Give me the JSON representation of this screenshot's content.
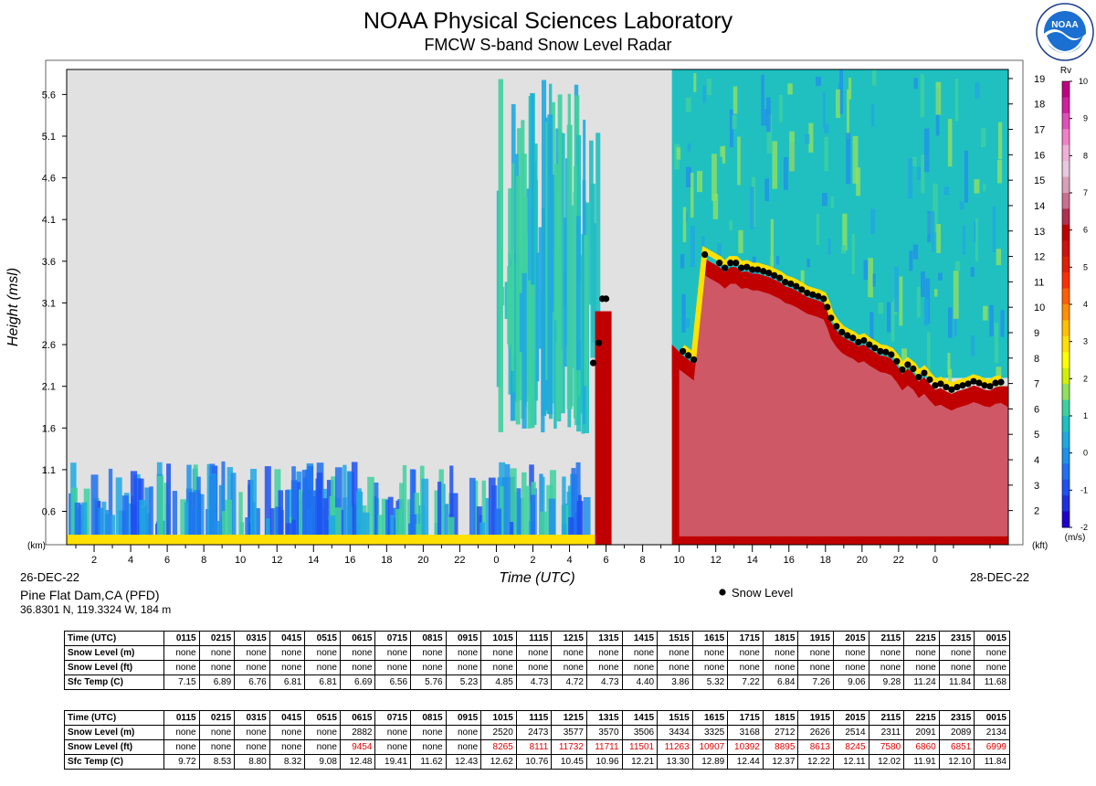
{
  "header": {
    "title": "NOAA Physical Sciences Laboratory",
    "subtitle": "FMCW S-band Snow Level Radar"
  },
  "logo": {
    "icon": "noaa-logo-icon",
    "text": "NOAA"
  },
  "site": {
    "name": "Pine Flat Dam,CA (PFD)",
    "coords": "36.8301 N, 119.3324 W, 184 m"
  },
  "chart_data": {
    "type": "heatmap",
    "xlabel": "Time (UTC)",
    "ylabel": "Height (msl)",
    "left_unit": "(km)",
    "right_unit": "(kft)",
    "start_date": "26-DEC-22",
    "end_date": "28-DEC-22",
    "x_ticks": [
      "2",
      "4",
      "6",
      "8",
      "10",
      "12",
      "14",
      "16",
      "18",
      "20",
      "22",
      "0",
      "2",
      "4",
      "6",
      "8",
      "10",
      "12",
      "14",
      "16",
      "18",
      "20",
      "22",
      "0"
    ],
    "y_ticks_km": [
      "5.6",
      "5.1",
      "4.6",
      "4.1",
      "3.6",
      "3.1",
      "2.6",
      "2.1",
      "1.6",
      "1.1",
      "0.6"
    ],
    "y_ticks_kft": [
      "19",
      "18",
      "17",
      "16",
      "15",
      "14",
      "13",
      "12",
      "11",
      "10",
      "9",
      "8",
      "7",
      "6",
      "5",
      "4",
      "3",
      "2"
    ],
    "colorbar": {
      "label": "Rv",
      "unit": "(m/s)",
      "ticks": [
        "10",
        "9",
        "8",
        "7",
        "6",
        "5",
        "4",
        "3",
        "2",
        "1",
        "0",
        "-1",
        "-2"
      ],
      "colors": [
        "#c00080",
        "#d020a0",
        "#e050b8",
        "#f080c8",
        "#f0b0d8",
        "#e8c8dc",
        "#d8a0b8",
        "#c87090",
        "#b03050",
        "#c00000",
        "#d01010",
        "#e02000",
        "#ff3000",
        "#ff6000",
        "#ff9000",
        "#ffc000",
        "#ffe000",
        "#ffff00",
        "#d0f000",
        "#90e060",
        "#40d0a0",
        "#20c0c0",
        "#20a8e0",
        "#2090e8",
        "#2070f0",
        "#2050f0",
        "#2030e0",
        "#2000d0"
      ]
    },
    "legend": {
      "label": "Snow Level",
      "position": "below-right"
    },
    "snow_level_km": [
      {
        "t": 29.3,
        "h": 2.38
      },
      {
        "t": 29.6,
        "h": 2.62
      },
      {
        "t": 29.8,
        "h": 3.15
      },
      {
        "t": 30.0,
        "h": 3.15
      },
      {
        "t": 34.2,
        "h": 2.52
      },
      {
        "t": 34.5,
        "h": 2.47
      },
      {
        "t": 34.8,
        "h": 2.42
      },
      {
        "t": 35.4,
        "h": 3.68
      },
      {
        "t": 36.2,
        "h": 3.58
      },
      {
        "t": 36.5,
        "h": 3.52
      },
      {
        "t": 36.8,
        "h": 3.58
      },
      {
        "t": 37.1,
        "h": 3.58
      },
      {
        "t": 37.4,
        "h": 3.52
      },
      {
        "t": 37.7,
        "h": 3.53
      },
      {
        "t": 38.0,
        "h": 3.5
      },
      {
        "t": 38.3,
        "h": 3.5
      },
      {
        "t": 38.6,
        "h": 3.48
      },
      {
        "t": 38.9,
        "h": 3.46
      },
      {
        "t": 39.2,
        "h": 3.43
      },
      {
        "t": 39.5,
        "h": 3.4
      },
      {
        "t": 39.8,
        "h": 3.35
      },
      {
        "t": 40.1,
        "h": 3.33
      },
      {
        "t": 40.4,
        "h": 3.3
      },
      {
        "t": 40.7,
        "h": 3.26
      },
      {
        "t": 41.0,
        "h": 3.22
      },
      {
        "t": 41.3,
        "h": 3.2
      },
      {
        "t": 41.6,
        "h": 3.18
      },
      {
        "t": 41.9,
        "h": 3.15
      },
      {
        "t": 42.1,
        "h": 3.05
      },
      {
        "t": 42.3,
        "h": 2.92
      },
      {
        "t": 42.6,
        "h": 2.82
      },
      {
        "t": 42.9,
        "h": 2.75
      },
      {
        "t": 43.2,
        "h": 2.71
      },
      {
        "t": 43.5,
        "h": 2.68
      },
      {
        "t": 43.8,
        "h": 2.63
      },
      {
        "t": 44.1,
        "h": 2.65
      },
      {
        "t": 44.4,
        "h": 2.6
      },
      {
        "t": 44.7,
        "h": 2.56
      },
      {
        "t": 45.0,
        "h": 2.52
      },
      {
        "t": 45.3,
        "h": 2.51
      },
      {
        "t": 45.6,
        "h": 2.48
      },
      {
        "t": 45.9,
        "h": 2.4
      },
      {
        "t": 46.2,
        "h": 2.3
      },
      {
        "t": 46.5,
        "h": 2.36
      },
      {
        "t": 46.8,
        "h": 2.31
      },
      {
        "t": 47.1,
        "h": 2.21
      },
      {
        "t": 47.4,
        "h": 2.26
      },
      {
        "t": 47.7,
        "h": 2.18
      },
      {
        "t": 48.0,
        "h": 2.11
      },
      {
        "t": 48.3,
        "h": 2.13
      },
      {
        "t": 48.6,
        "h": 2.09
      },
      {
        "t": 48.9,
        "h": 2.06
      },
      {
        "t": 49.2,
        "h": 2.09
      },
      {
        "t": 49.5,
        "h": 2.11
      },
      {
        "t": 49.8,
        "h": 2.13
      },
      {
        "t": 50.1,
        "h": 2.16
      },
      {
        "t": 50.4,
        "h": 2.14
      },
      {
        "t": 50.7,
        "h": 2.11
      },
      {
        "t": 51.0,
        "h": 2.1
      },
      {
        "t": 51.3,
        "h": 2.14
      },
      {
        "t": 51.6,
        "h": 2.15
      }
    ]
  },
  "tables": [
    {
      "rows": [
        {
          "label": "Time (UTC)",
          "cells": [
            "0115",
            "0215",
            "0315",
            "0415",
            "0515",
            "0615",
            "0715",
            "0815",
            "0915",
            "1015",
            "1115",
            "1215",
            "1315",
            "1415",
            "1515",
            "1615",
            "1715",
            "1815",
            "1915",
            "2015",
            "2115",
            "2215",
            "2315",
            "0015"
          ]
        },
        {
          "label": "Snow Level (m)",
          "cells": [
            "none",
            "none",
            "none",
            "none",
            "none",
            "none",
            "none",
            "none",
            "none",
            "none",
            "none",
            "none",
            "none",
            "none",
            "none",
            "none",
            "none",
            "none",
            "none",
            "none",
            "none",
            "none",
            "none",
            "none"
          ]
        },
        {
          "label": "Snow Level (ft)",
          "cells": [
            "none",
            "none",
            "none",
            "none",
            "none",
            "none",
            "none",
            "none",
            "none",
            "none",
            "none",
            "none",
            "none",
            "none",
            "none",
            "none",
            "none",
            "none",
            "none",
            "none",
            "none",
            "none",
            "none",
            "none"
          ]
        },
        {
          "label": "Sfc Temp (C)",
          "cells": [
            "7.15",
            "6.89",
            "6.76",
            "6.81",
            "6.81",
            "6.69",
            "6.56",
            "5.76",
            "5.23",
            "4.85",
            "4.73",
            "4.72",
            "4.73",
            "4.40",
            "3.86",
            "5.32",
            "7.22",
            "6.84",
            "7.26",
            "9.06",
            "9.28",
            "11.24",
            "11.84",
            "11.68"
          ]
        }
      ]
    },
    {
      "rows": [
        {
          "label": "Time (UTC)",
          "cells": [
            "0115",
            "0215",
            "0315",
            "0415",
            "0515",
            "0615",
            "0715",
            "0815",
            "0915",
            "1015",
            "1115",
            "1215",
            "1315",
            "1415",
            "1515",
            "1615",
            "1715",
            "1815",
            "1915",
            "2015",
            "2115",
            "2215",
            "2315",
            "0015"
          ]
        },
        {
          "label": "Snow Level (m)",
          "cells": [
            "none",
            "none",
            "none",
            "none",
            "none",
            "2882",
            "none",
            "none",
            "none",
            "2520",
            "2473",
            "3577",
            "3570",
            "3506",
            "3434",
            "3325",
            "3168",
            "2712",
            "2626",
            "2514",
            "2311",
            "2091",
            "2089",
            "2134"
          ]
        },
        {
          "label": "Snow Level (ft)",
          "cells": [
            "none",
            "none",
            "none",
            "none",
            "none",
            "9454",
            "none",
            "none",
            "none",
            "8265",
            "8111",
            "11732",
            "11711",
            "11501",
            "11263",
            "10907",
            "10392",
            "8895",
            "8613",
            "8245",
            "7580",
            "6860",
            "6851",
            "6999"
          ],
          "highlight_color": "#e00000"
        },
        {
          "label": "Sfc Temp (C)",
          "cells": [
            "9.72",
            "8.53",
            "8.80",
            "8.32",
            "9.08",
            "12.48",
            "19.41",
            "11.62",
            "12.43",
            "12.62",
            "10.76",
            "10.45",
            "10.96",
            "12.21",
            "13.30",
            "12.89",
            "12.44",
            "12.37",
            "12.22",
            "12.11",
            "12.02",
            "11.91",
            "12.10",
            "11.84"
          ]
        }
      ]
    }
  ]
}
